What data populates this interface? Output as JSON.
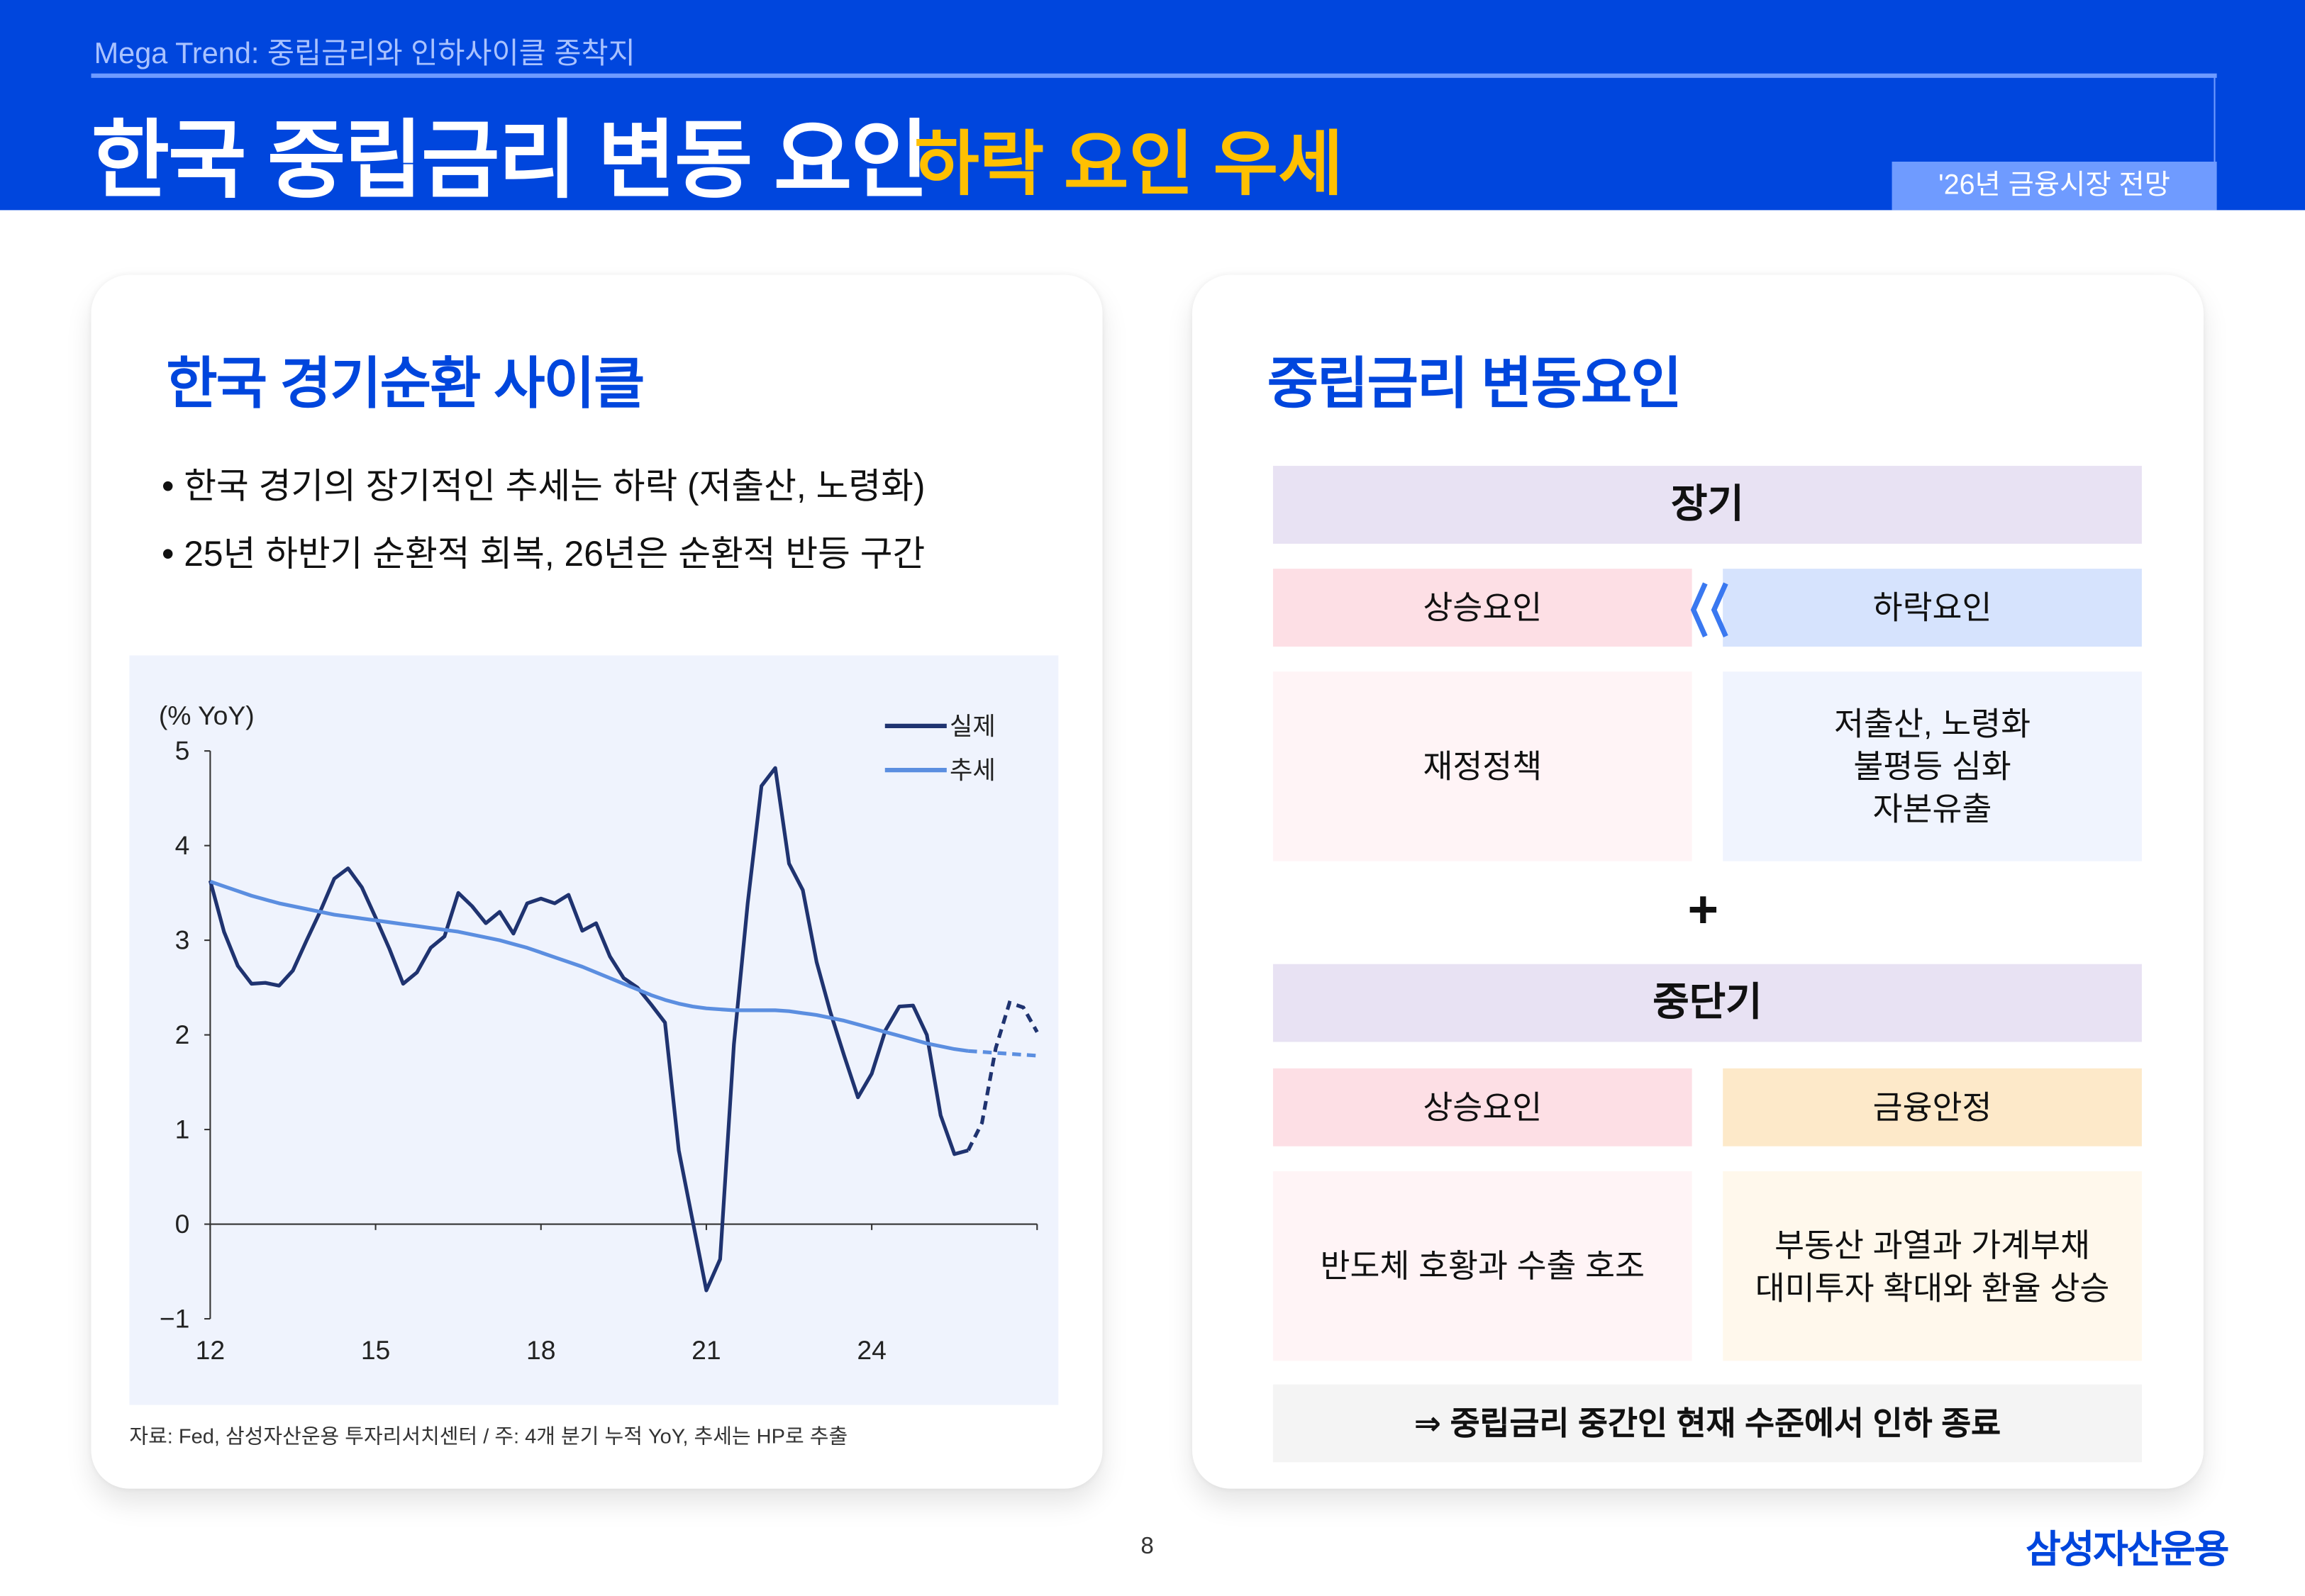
{
  "header": {
    "kicker": "Mega Trend: 중립금리와 인하사이클 종착지",
    "title": "한국 중립금리 변동 요인",
    "subtitle": "하락 요인 우세",
    "badge": "'26년 금융시장 전망"
  },
  "left": {
    "title": "한국 경기순환 사이클",
    "bullets": [
      "• 한국 경기의 장기적인 추세는 하락 (저출산, 노령화)",
      "• 25년 하반기 순환적 회복, 26년은 순환적 반등 구간"
    ],
    "source": "자료: Fed, 삼성자산운용 투자리서치센터 / 주: 4개 분기 누적 YoY, 추세는 HP로 추출"
  },
  "right": {
    "title": "중립금리 변동요인",
    "long_term": {
      "header": "장기",
      "up_label": "상승요인",
      "down_label": "하락요인",
      "up_items": [
        "재정정책"
      ],
      "down_items": [
        "저출산, 노령화",
        "불평등 심화",
        "자본유출"
      ]
    },
    "plus": "+",
    "mid_term": {
      "header": "중단기",
      "up_label": "상승요인",
      "stable_label": "금융안정",
      "up_items": [
        "반도체 호황과 수출 호조"
      ],
      "stable_items": [
        "부동산 과열과 가계부채",
        "대미투자 확대와 환율 상승"
      ]
    },
    "conclusion": "⇒ 중립금리 중간인 현재 수준에서 인하 종료"
  },
  "footer": {
    "page": "8",
    "logo": "삼성자산운용"
  },
  "colors": {
    "brand": "#0046dd",
    "accent": "#ffc000",
    "actual": "#1f3370",
    "trend": "#5b8ee0"
  },
  "chart_data": {
    "type": "line",
    "ylabel": "(% YoY)",
    "ylim": [
      -1,
      5
    ],
    "yticks": [
      "5",
      "4",
      "3",
      "2",
      "1",
      "0",
      "-1"
    ],
    "xlim": [
      2012,
      2027
    ],
    "xticks": [
      {
        "value": 2012,
        "label": "12"
      },
      {
        "value": 2015,
        "label": "15"
      },
      {
        "value": 2018,
        "label": "18"
      },
      {
        "value": 2021,
        "label": "21"
      },
      {
        "value": 2024,
        "label": "24"
      }
    ],
    "forecast_from": 2025.75,
    "legend": {
      "position": "top-right",
      "entries": [
        "실제",
        "추세"
      ]
    },
    "series": [
      {
        "name": "실제",
        "values": [
          3.63,
          3.09,
          2.73,
          2.54,
          2.55,
          2.52,
          2.68,
          3.0,
          3.31,
          3.65,
          3.76,
          3.56,
          3.24,
          2.91,
          2.54,
          2.66,
          2.92,
          3.04,
          3.5,
          3.36,
          3.18,
          3.3,
          3.07,
          3.39,
          3.44,
          3.39,
          3.48,
          3.1,
          3.18,
          2.83,
          2.6,
          2.5,
          2.32,
          2.13,
          0.78,
          0.04,
          -0.7,
          -0.37,
          1.9,
          3.39,
          4.63,
          4.82,
          3.81,
          3.53,
          2.77,
          2.24,
          1.78,
          1.34,
          1.59,
          2.05,
          2.3,
          2.31,
          2.0,
          1.15,
          0.74,
          0.78,
          1.07,
          1.86,
          2.34,
          2.29,
          2.03
        ]
      },
      {
        "name": "추세",
        "values": [
          3.62,
          3.57,
          3.52,
          3.47,
          3.43,
          3.39,
          3.36,
          3.33,
          3.3,
          3.27,
          3.25,
          3.23,
          3.21,
          3.19,
          3.17,
          3.15,
          3.13,
          3.11,
          3.09,
          3.06,
          3.03,
          3.0,
          2.96,
          2.92,
          2.87,
          2.82,
          2.77,
          2.72,
          2.66,
          2.6,
          2.54,
          2.48,
          2.42,
          2.37,
          2.33,
          2.3,
          2.28,
          2.27,
          2.26,
          2.26,
          2.26,
          2.26,
          2.25,
          2.23,
          2.21,
          2.18,
          2.15,
          2.11,
          2.07,
          2.03,
          1.99,
          1.95,
          1.91,
          1.88,
          1.85,
          1.83,
          1.82,
          1.81,
          1.8,
          1.79,
          1.78
        ]
      }
    ]
  }
}
